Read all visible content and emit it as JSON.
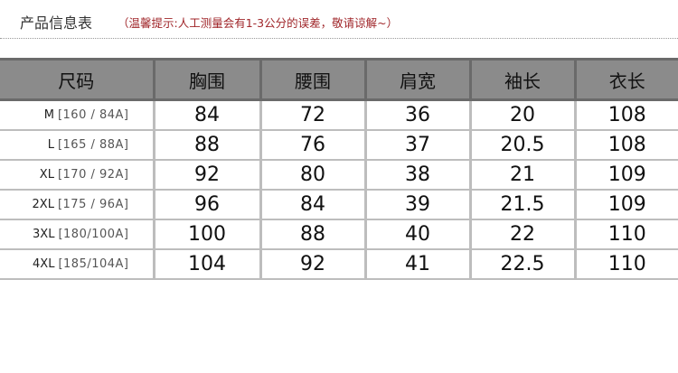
{
  "title": "产品信息表",
  "note": "（温馨提示:人工测量会有1-3公分的误差，敬请谅解~）",
  "headers": [
    "尺码",
    "胸围",
    "腰围",
    "肩宽",
    "袖长",
    "衣长"
  ],
  "rows": [
    {
      "size": "M",
      "spec": "[160 / 84A]",
      "values": [
        "84",
        "72",
        "36",
        "20",
        "108"
      ]
    },
    {
      "size": "L",
      "spec": "[165 / 88A]",
      "values": [
        "88",
        "76",
        "37",
        "20.5",
        "108"
      ]
    },
    {
      "size": "XL",
      "spec": "[170 / 92A]",
      "values": [
        "92",
        "80",
        "38",
        "21",
        "109"
      ]
    },
    {
      "size": "2XL",
      "spec": "[175 / 96A]",
      "values": [
        "96",
        "84",
        "39",
        "21.5",
        "109"
      ]
    },
    {
      "size": "3XL",
      "spec": "[180/100A]",
      "values": [
        "100",
        "88",
        "40",
        "22",
        "110"
      ]
    },
    {
      "size": "4XL",
      "spec": "[185/104A]",
      "values": [
        "104",
        "92",
        "41",
        "22.5",
        "110"
      ]
    }
  ]
}
